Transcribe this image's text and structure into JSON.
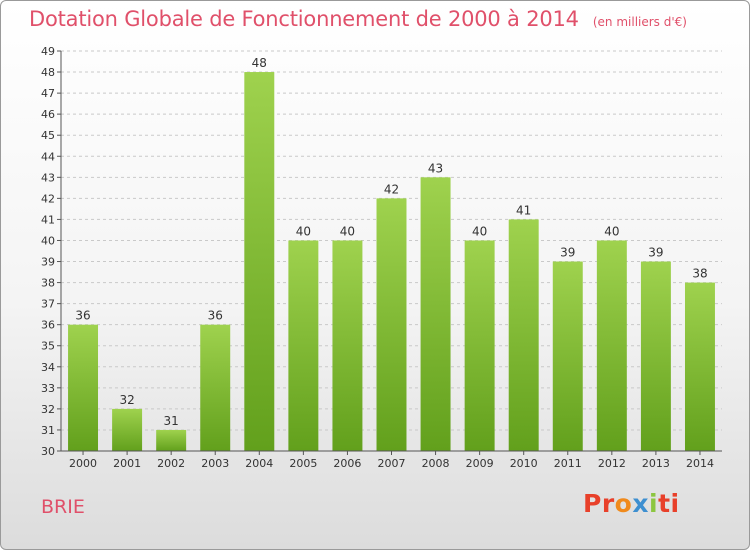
{
  "chart_data": {
    "type": "bar",
    "title": "Dotation Globale de Fonctionnement de 2000 à 2014",
    "subtitle": "(en milliers d'€)",
    "categories": [
      "2000",
      "2001",
      "2002",
      "2003",
      "2004",
      "2005",
      "2006",
      "2007",
      "2008",
      "2009",
      "2010",
      "2011",
      "2012",
      "2013",
      "2014"
    ],
    "values": [
      36,
      32,
      31,
      36,
      48,
      40,
      40,
      42,
      43,
      40,
      41,
      39,
      40,
      39,
      38
    ],
    "ylim": [
      30,
      49
    ],
    "yticks": [
      30,
      31,
      32,
      33,
      34,
      35,
      36,
      37,
      38,
      39,
      40,
      41,
      42,
      43,
      44,
      45,
      46,
      47,
      48,
      49
    ],
    "grid": true,
    "colors": {
      "bar_top": "#9fd24e",
      "bar_bottom": "#62a01c",
      "grid": "#c9c9c9",
      "title": "#e0506a"
    }
  },
  "footer": {
    "commune": "BRIE",
    "logo": {
      "p1": "Pr",
      "p2": "o",
      "p3": "x",
      "p4": "i",
      "p5": "ti"
    }
  }
}
